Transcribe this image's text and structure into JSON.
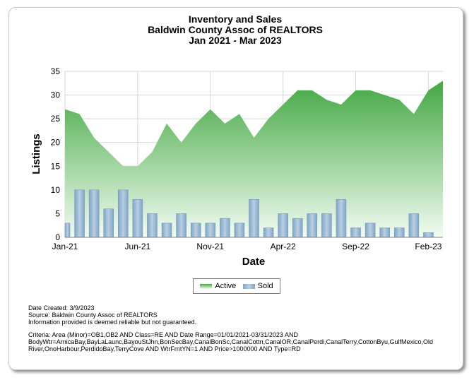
{
  "title": {
    "line1": "Inventory and Sales",
    "line2": "Baldwin County Assoc of REALTORS",
    "line3": "Jan 2021 - Mar 2023"
  },
  "colors": {
    "active_dark": "#43a843",
    "active_light": "#f2fbf2",
    "sold_dark": "#7fa5c6",
    "sold_light": "#b7cfe3",
    "grid": "#d6d6d6"
  },
  "chart_data": {
    "type": "area+bar",
    "xlabel": "Date",
    "ylabel": "Listings",
    "ylim": [
      0,
      35
    ],
    "yticks": [
      0,
      5,
      10,
      15,
      20,
      25,
      30,
      35
    ],
    "x": [
      "Jan-21",
      "Feb-21",
      "Mar-21",
      "Apr-21",
      "May-21",
      "Jun-21",
      "Jul-21",
      "Aug-21",
      "Sep-21",
      "Oct-21",
      "Nov-21",
      "Dec-21",
      "Jan-22",
      "Feb-22",
      "Mar-22",
      "Apr-22",
      "May-22",
      "Jun-22",
      "Jul-22",
      "Aug-22",
      "Sep-22",
      "Oct-22",
      "Nov-22",
      "Dec-22",
      "Jan-23",
      "Feb-23",
      "Mar-23"
    ],
    "xtick_labels": [
      {
        "index": 0,
        "label": "Jan-21"
      },
      {
        "index": 5,
        "label": "Jun-21"
      },
      {
        "index": 10,
        "label": "Nov-21"
      },
      {
        "index": 15,
        "label": "Apr-22"
      },
      {
        "index": 20,
        "label": "Sep-22"
      },
      {
        "index": 25,
        "label": "Feb-23"
      }
    ],
    "series": [
      {
        "name": "Active",
        "type": "area",
        "values": [
          27,
          26,
          21,
          18,
          15,
          15,
          18,
          24,
          20,
          24,
          27,
          24,
          26,
          21,
          25,
          28,
          31,
          31,
          29,
          28,
          31,
          31,
          30,
          29,
          26,
          31,
          33
        ]
      },
      {
        "name": "Sold",
        "type": "bar",
        "values": [
          3,
          10,
          10,
          6,
          10,
          8,
          5,
          3,
          5,
          3,
          3,
          4,
          3,
          8,
          2,
          5,
          4,
          5,
          5,
          8,
          2,
          3,
          2,
          2,
          5,
          1,
          0
        ]
      }
    ],
    "grid": true,
    "legend": "bottom-center"
  },
  "notes": {
    "created": "Date Created: 3/9/2023",
    "source": "Source: Baldwin County Assoc of REALTORS",
    "disclaimer": "Information provided is deemed reliable but not guaranteed.",
    "criteria": "Criteria: Area (Minor)=OB1,OB2 AND Class=RE AND Date Range=01/01/2021-03/31/2023 AND BodyWtr=ArnicaBay,BayLaLaunc,BayouStJhn,BonSecBay,CanalBonSc,CanalCottn,CanalOR,CanalPerdi,CanalTerry,CottonByu,GulfMexico,Old River,OnoHarbour,PerdidoBay,TerryCove AND WtrFrntYN=1 AND Price>1000000 AND Type=RD"
  }
}
